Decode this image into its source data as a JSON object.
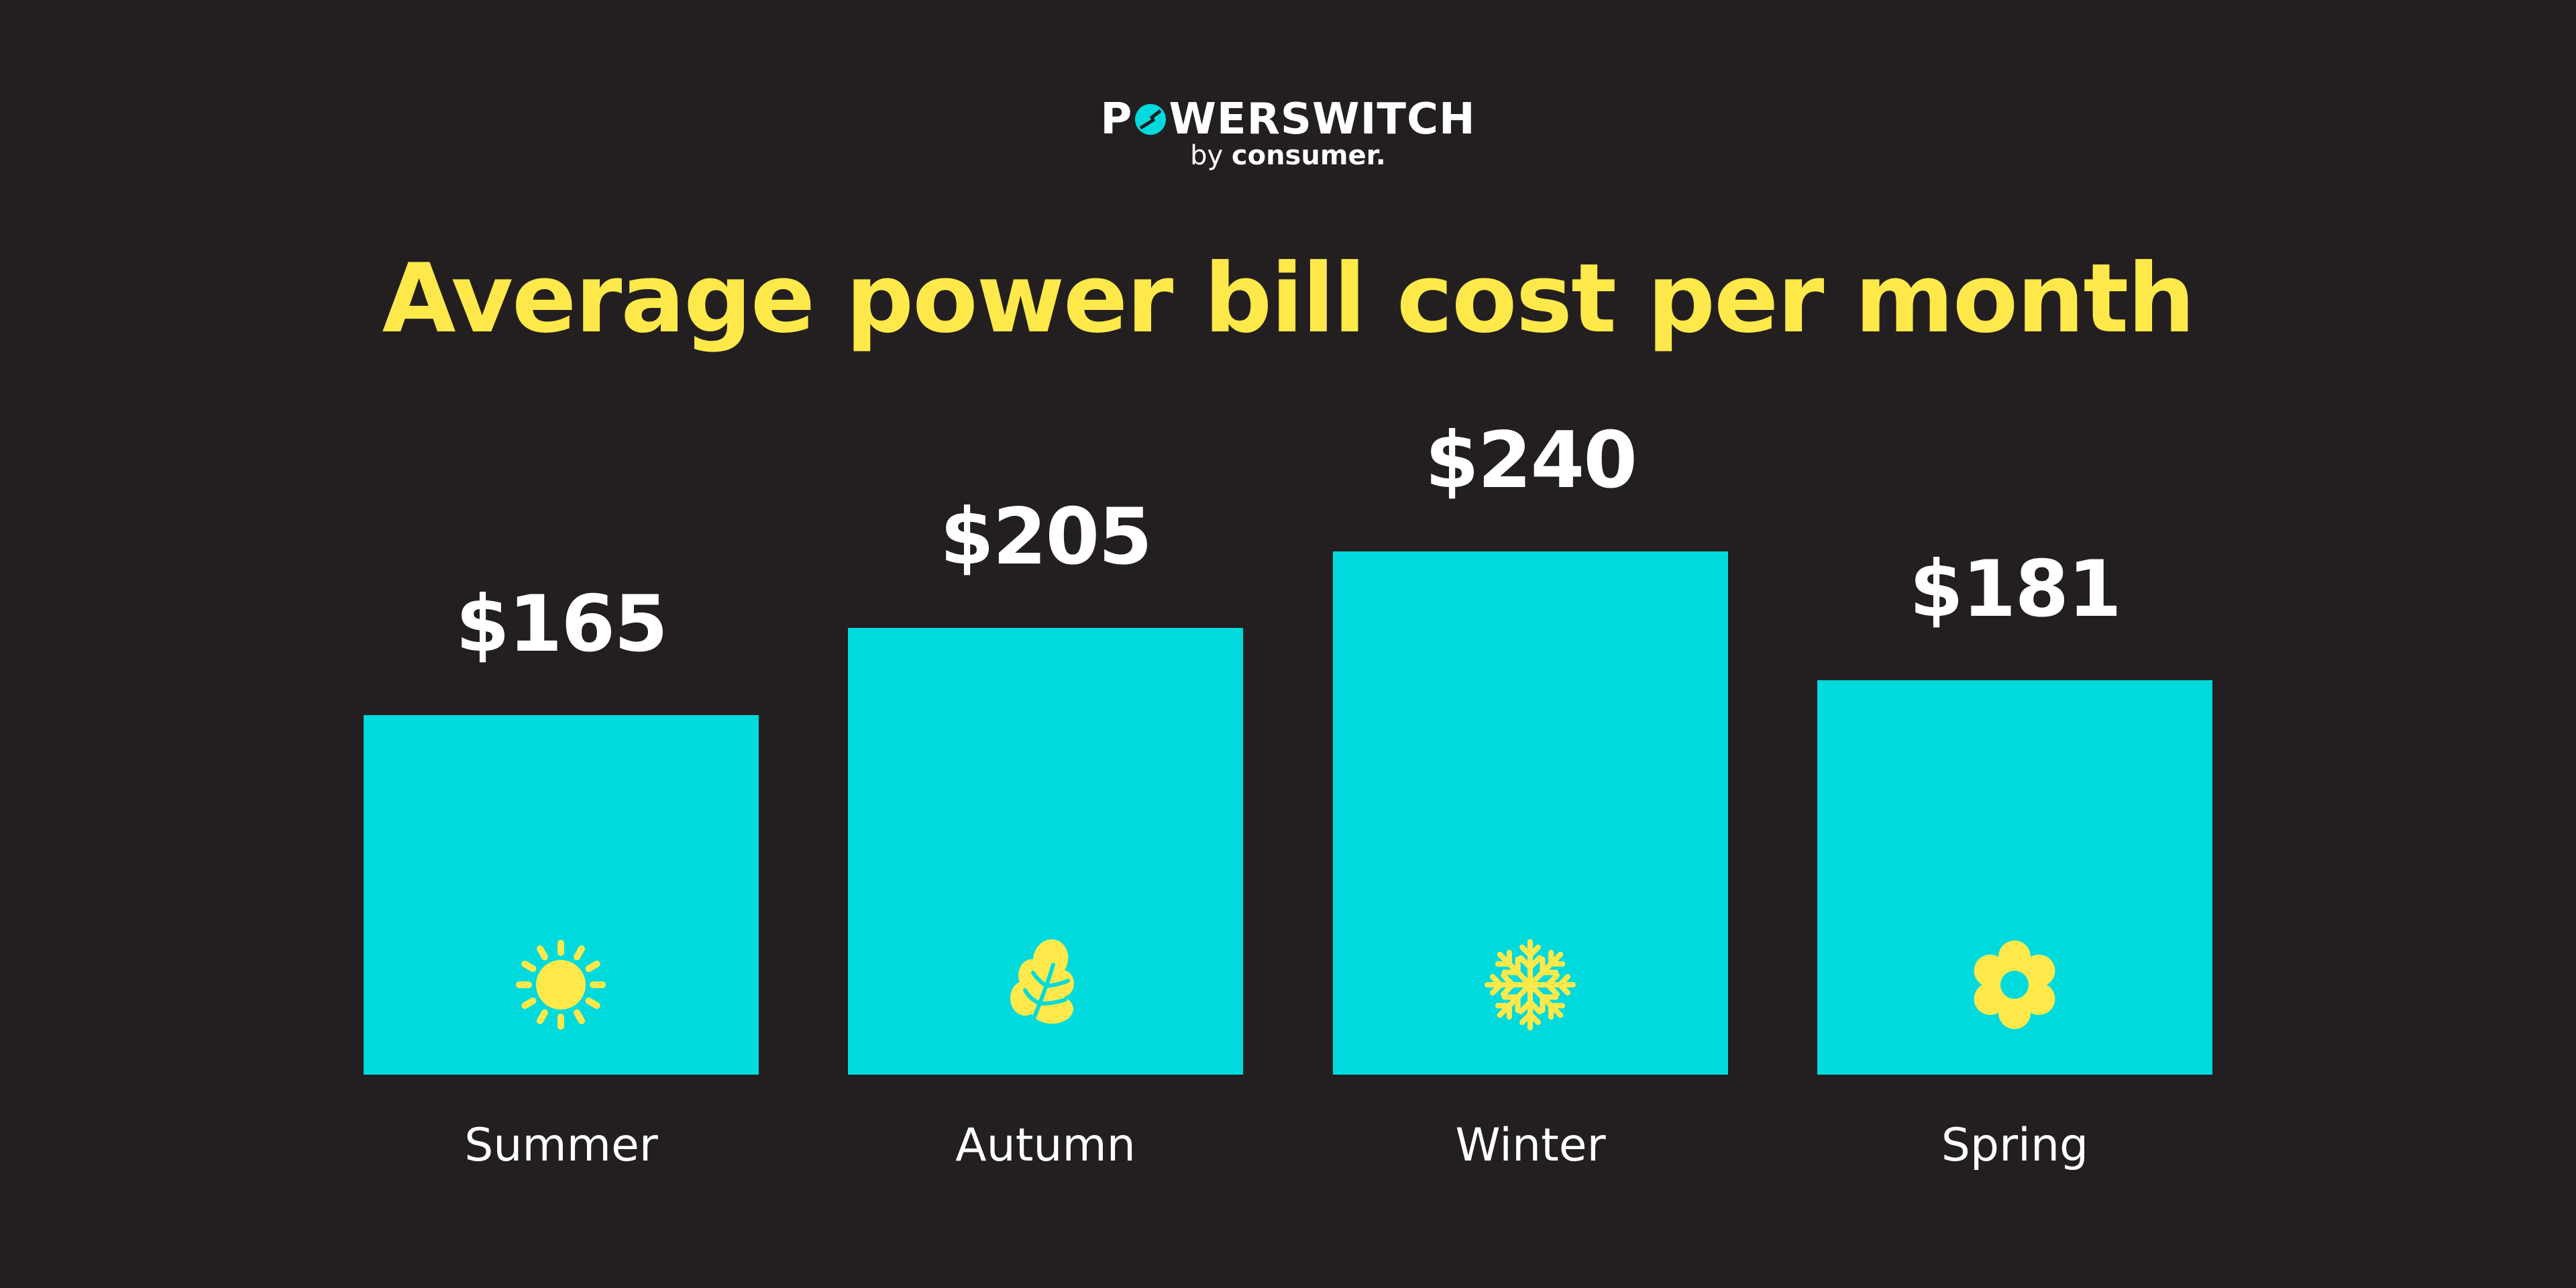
{
  "logo": {
    "name_before_o": "P",
    "name_after_o": "WERSWITCH",
    "by": "by",
    "brand": "consumer."
  },
  "title": "Average power bill cost per month",
  "colors": {
    "background": "#231F20",
    "bar": "#00DADC",
    "accent_yellow": "#FFE94A",
    "text": "#FFFFFF"
  },
  "chart_data": {
    "type": "bar",
    "title": "Average power bill cost per month",
    "categories": [
      "Summer",
      "Autumn",
      "Winter",
      "Spring"
    ],
    "values": [
      165,
      205,
      240,
      181
    ],
    "value_labels": [
      "$165",
      "$205",
      "$240",
      "$181"
    ],
    "icons": [
      "sun-icon",
      "leaf-icon",
      "snowflake-icon",
      "flower-icon"
    ],
    "xlabel": "",
    "ylabel": "",
    "unit": "$",
    "grid": false,
    "legend": false
  },
  "bars": [
    {
      "label": "Summer",
      "value_label": "$165",
      "value": 165,
      "icon": "sun-icon"
    },
    {
      "label": "Autumn",
      "value_label": "$205",
      "value": 205,
      "icon": "leaf-icon"
    },
    {
      "label": "Winter",
      "value_label": "$240",
      "value": 240,
      "icon": "snowflake-icon"
    },
    {
      "label": "Spring",
      "value_label": "$181",
      "value": 181,
      "icon": "flower-icon"
    }
  ]
}
